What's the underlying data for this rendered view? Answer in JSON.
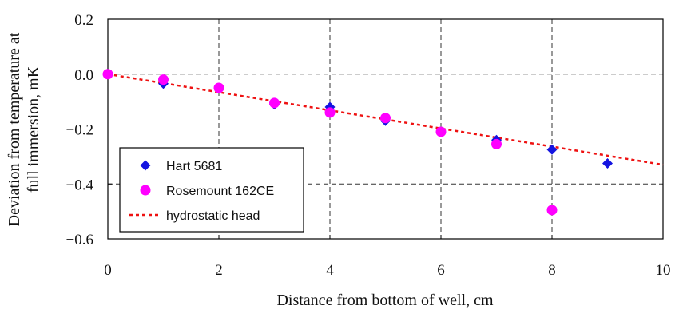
{
  "chart_data": {
    "type": "scatter",
    "title": "",
    "xlabel": "Distance from bottom of well, cm",
    "ylabel_lines": [
      "Deviation from temperature at",
      "full immersion, mK"
    ],
    "xlim": [
      0,
      10
    ],
    "ylim": [
      -0.6,
      0.2
    ],
    "x_ticks": [
      0,
      2,
      4,
      6,
      8,
      10
    ],
    "x_tick_labels": [
      "0",
      "2",
      "4",
      "6",
      "8",
      "10"
    ],
    "y_ticks": [
      0.2,
      0.0,
      -0.2,
      -0.4,
      -0.6
    ],
    "y_tick_labels": [
      "0.2",
      "0.0",
      "−0.2",
      "−0.4",
      "−0.6"
    ],
    "grid": "dashed",
    "legend_position": "bottom-left",
    "series": [
      {
        "name": "Hart 5681",
        "kind": "scatter",
        "marker": "diamond",
        "color": "#1414e0",
        "x": [
          1,
          2,
          3,
          4,
          5,
          6,
          7,
          8,
          9
        ],
        "y": [
          -0.035,
          -0.05,
          -0.11,
          -0.12,
          -0.17,
          -0.21,
          -0.24,
          -0.275,
          -0.325
        ]
      },
      {
        "name": "Rosemount 162CE",
        "kind": "scatter",
        "marker": "circle",
        "color": "#ff00ff",
        "x": [
          0,
          1,
          2,
          3,
          4,
          5,
          6,
          7,
          8
        ],
        "y": [
          0.0,
          -0.02,
          -0.05,
          -0.105,
          -0.14,
          -0.16,
          -0.21,
          -0.255,
          -0.495
        ]
      },
      {
        "name": "hydrostatic head",
        "kind": "line",
        "style": "dotted",
        "color": "#ee1111",
        "x": [
          0,
          10
        ],
        "y": [
          0.0,
          -0.33
        ]
      }
    ]
  }
}
